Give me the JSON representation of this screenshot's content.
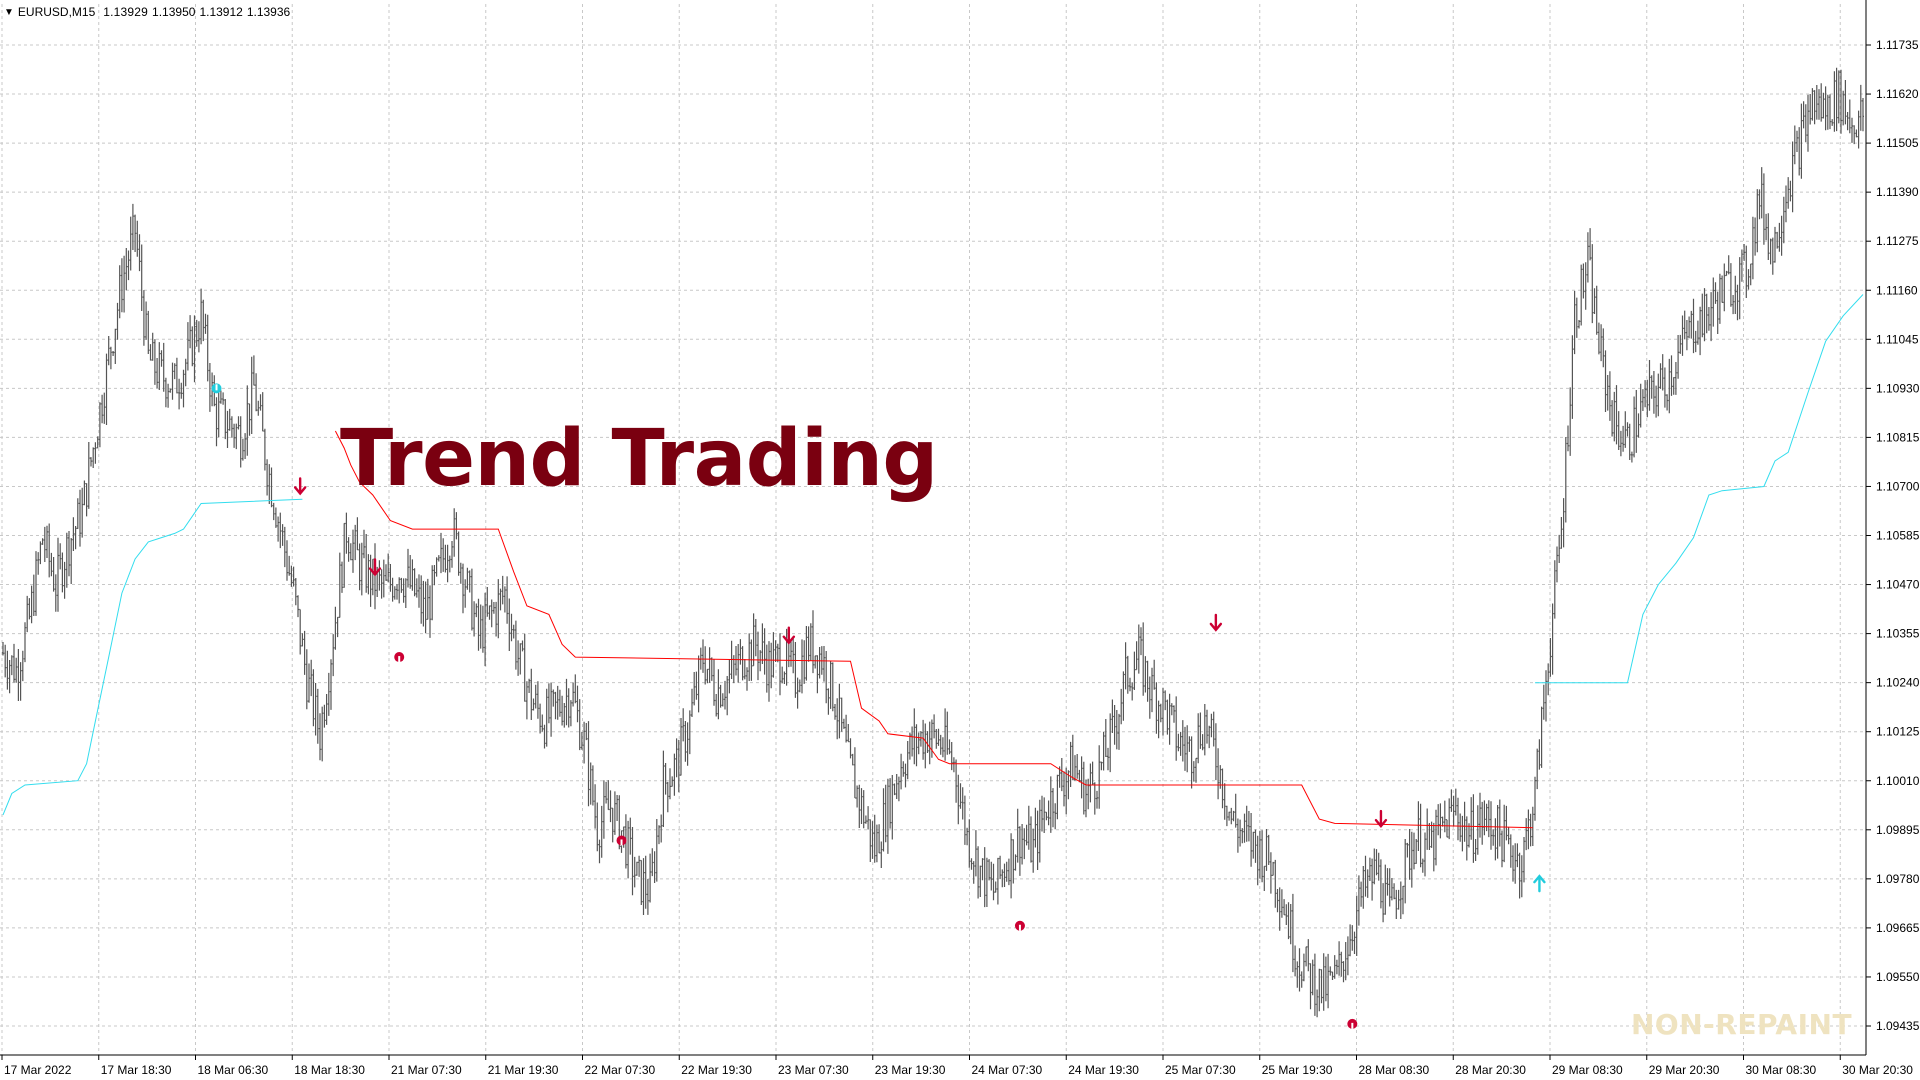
{
  "header": {
    "symbol": "EURUSD,M15",
    "open": "1.13929",
    "high": "1.13950",
    "low": "1.13912",
    "close": "1.13936"
  },
  "overlay_title": "Trend Trading",
  "watermark": "NON-REPAINT",
  "colors": {
    "price_bars": "#555555",
    "down_line": "#ff0000",
    "up_line": "#33ddee",
    "sell_arrow": "#cc0033",
    "buy_arrow": "#22ccdd",
    "grid": "#c8c8c8",
    "title": "#7a0010"
  },
  "chart_data": {
    "type": "line",
    "y_ticks": [
      "1.11735",
      "1.11620",
      "1.11505",
      "1.11390",
      "1.11275",
      "1.11160",
      "1.11045",
      "1.10930",
      "1.10815",
      "1.10700",
      "1.10585",
      "1.10470",
      "1.10355",
      "1.10240",
      "1.10125",
      "1.10010",
      "1.09895",
      "1.09780",
      "1.09665",
      "1.09550",
      "1.09435"
    ],
    "x_ticks": [
      "17 Mar 2022",
      "17 Mar 18:30",
      "18 Mar 06:30",
      "18 Mar 18:30",
      "21 Mar 07:30",
      "21 Mar 19:30",
      "22 Mar 07:30",
      "22 Mar 19:30",
      "23 Mar 07:30",
      "23 Mar 19:30",
      "24 Mar 07:30",
      "24 Mar 19:30",
      "25 Mar 07:30",
      "25 Mar 19:30",
      "28 Mar 08:30",
      "28 Mar 20:30",
      "29 Mar 08:30",
      "29 Mar 20:30",
      "30 Mar 08:30",
      "30 Mar 20:30"
    ],
    "ylim": [
      1.09435,
      1.11735
    ],
    "price_path": [
      {
        "i": 0,
        "v": 1.1031
      },
      {
        "i": 6,
        "v": 1.1027
      },
      {
        "i": 12,
        "v": 1.1039
      },
      {
        "i": 18,
        "v": 1.1058
      },
      {
        "i": 24,
        "v": 1.1047
      },
      {
        "i": 30,
        "v": 1.1057
      },
      {
        "i": 36,
        "v": 1.1064
      },
      {
        "i": 42,
        "v": 1.1082
      },
      {
        "i": 48,
        "v": 1.11
      },
      {
        "i": 54,
        "v": 1.1118
      },
      {
        "i": 60,
        "v": 1.113
      },
      {
        "i": 66,
        "v": 1.11
      },
      {
        "i": 72,
        "v": 1.1096
      },
      {
        "i": 78,
        "v": 1.1094
      },
      {
        "i": 84,
        "v": 1.11
      },
      {
        "i": 90,
        "v": 1.111
      },
      {
        "i": 96,
        "v": 1.1088
      },
      {
        "i": 102,
        "v": 1.1085
      },
      {
        "i": 108,
        "v": 1.1082
      },
      {
        "i": 114,
        "v": 1.1093
      },
      {
        "i": 120,
        "v": 1.1075
      },
      {
        "i": 126,
        "v": 1.106
      },
      {
        "i": 132,
        "v": 1.1045
      },
      {
        "i": 138,
        "v": 1.1025
      },
      {
        "i": 144,
        "v": 1.1012
      },
      {
        "i": 150,
        "v": 1.1035
      },
      {
        "i": 156,
        "v": 1.106
      },
      {
        "i": 162,
        "v": 1.1052
      },
      {
        "i": 168,
        "v": 1.1048
      },
      {
        "i": 174,
        "v": 1.1046
      },
      {
        "i": 180,
        "v": 1.105
      },
      {
        "i": 186,
        "v": 1.1046
      },
      {
        "i": 192,
        "v": 1.104
      },
      {
        "i": 198,
        "v": 1.105
      },
      {
        "i": 204,
        "v": 1.106
      },
      {
        "i": 210,
        "v": 1.1048
      },
      {
        "i": 216,
        "v": 1.1035
      },
      {
        "i": 222,
        "v": 1.104
      },
      {
        "i": 228,
        "v": 1.1045
      },
      {
        "i": 234,
        "v": 1.103
      },
      {
        "i": 240,
        "v": 1.102
      },
      {
        "i": 246,
        "v": 1.1015
      },
      {
        "i": 252,
        "v": 1.1018
      },
      {
        "i": 258,
        "v": 1.1022
      },
      {
        "i": 264,
        "v": 1.101
      },
      {
        "i": 270,
        "v": 1.099
      },
      {
        "i": 276,
        "v": 1.0995
      },
      {
        "i": 282,
        "v": 1.0988
      },
      {
        "i": 288,
        "v": 1.0978
      },
      {
        "i": 294,
        "v": 1.0975
      },
      {
        "i": 300,
        "v": 1.1
      },
      {
        "i": 306,
        "v": 1.1005
      },
      {
        "i": 312,
        "v": 1.1015
      },
      {
        "i": 318,
        "v": 1.103
      },
      {
        "i": 324,
        "v": 1.1022
      },
      {
        "i": 330,
        "v": 1.1025
      },
      {
        "i": 336,
        "v": 1.103
      },
      {
        "i": 342,
        "v": 1.1033
      },
      {
        "i": 348,
        "v": 1.1028
      },
      {
        "i": 354,
        "v": 1.103
      },
      {
        "i": 360,
        "v": 1.1025
      },
      {
        "i": 366,
        "v": 1.1033
      },
      {
        "i": 372,
        "v": 1.103
      },
      {
        "i": 378,
        "v": 1.102
      },
      {
        "i": 384,
        "v": 1.1005
      },
      {
        "i": 390,
        "v": 1.0995
      },
      {
        "i": 396,
        "v": 1.0985
      },
      {
        "i": 402,
        "v": 1.0995
      },
      {
        "i": 408,
        "v": 1.1005
      },
      {
        "i": 414,
        "v": 1.101
      },
      {
        "i": 420,
        "v": 1.1012
      },
      {
        "i": 426,
        "v": 1.101
      },
      {
        "i": 432,
        "v": 1.1005
      },
      {
        "i": 438,
        "v": 1.0988
      },
      {
        "i": 444,
        "v": 1.098
      },
      {
        "i": 450,
        "v": 1.0975
      },
      {
        "i": 456,
        "v": 1.0982
      },
      {
        "i": 462,
        "v": 1.0988
      },
      {
        "i": 468,
        "v": 1.0985
      },
      {
        "i": 474,
        "v": 1.0995
      },
      {
        "i": 480,
        "v": 1.1
      },
      {
        "i": 486,
        "v": 1.1005
      },
      {
        "i": 492,
        "v": 1.0998
      },
      {
        "i": 498,
        "v": 1.1003
      },
      {
        "i": 504,
        "v": 1.1012
      },
      {
        "i": 510,
        "v": 1.1025
      },
      {
        "i": 516,
        "v": 1.103
      },
      {
        "i": 522,
        "v": 1.1022
      },
      {
        "i": 528,
        "v": 1.1018
      },
      {
        "i": 534,
        "v": 1.101
      },
      {
        "i": 540,
        "v": 1.1008
      },
      {
        "i": 546,
        "v": 1.1015
      },
      {
        "i": 552,
        "v": 1.1005
      },
      {
        "i": 558,
        "v": 1.0992
      },
      {
        "i": 564,
        "v": 1.0988
      },
      {
        "i": 570,
        "v": 1.0985
      },
      {
        "i": 576,
        "v": 1.0982
      },
      {
        "i": 582,
        "v": 1.0972
      },
      {
        "i": 588,
        "v": 1.096
      },
      {
        "i": 594,
        "v": 1.0955
      },
      {
        "i": 600,
        "v": 1.0952
      },
      {
        "i": 606,
        "v": 1.0955
      },
      {
        "i": 612,
        "v": 1.0965
      },
      {
        "i": 618,
        "v": 1.0975
      },
      {
        "i": 624,
        "v": 1.098
      },
      {
        "i": 630,
        "v": 1.097
      },
      {
        "i": 636,
        "v": 1.098
      },
      {
        "i": 642,
        "v": 1.0988
      },
      {
        "i": 648,
        "v": 1.0985
      },
      {
        "i": 654,
        "v": 1.099
      },
      {
        "i": 660,
        "v": 1.0994
      },
      {
        "i": 666,
        "v": 1.0988
      },
      {
        "i": 672,
        "v": 1.0992
      },
      {
        "i": 678,
        "v": 1.099
      },
      {
        "i": 684,
        "v": 1.0985
      },
      {
        "i": 690,
        "v": 1.0982
      },
      {
        "i": 696,
        "v": 1.0998
      },
      {
        "i": 702,
        "v": 1.103
      },
      {
        "i": 708,
        "v": 1.106
      },
      {
        "i": 714,
        "v": 1.111
      },
      {
        "i": 720,
        "v": 1.1122
      },
      {
        "i": 726,
        "v": 1.11
      },
      {
        "i": 732,
        "v": 1.1085
      },
      {
        "i": 738,
        "v": 1.108
      },
      {
        "i": 744,
        "v": 1.1088
      },
      {
        "i": 750,
        "v": 1.1092
      },
      {
        "i": 756,
        "v": 1.1095
      },
      {
        "i": 762,
        "v": 1.1102
      },
      {
        "i": 768,
        "v": 1.1108
      },
      {
        "i": 774,
        "v": 1.111
      },
      {
        "i": 780,
        "v": 1.1115
      },
      {
        "i": 786,
        "v": 1.1118
      },
      {
        "i": 792,
        "v": 1.112
      },
      {
        "i": 798,
        "v": 1.1138
      },
      {
        "i": 804,
        "v": 1.1125
      },
      {
        "i": 810,
        "v": 1.114
      },
      {
        "i": 816,
        "v": 1.115
      },
      {
        "i": 822,
        "v": 1.116
      },
      {
        "i": 828,
        "v": 1.1158
      },
      {
        "i": 834,
        "v": 1.1162
      },
      {
        "i": 840,
        "v": 1.1155
      },
      {
        "i": 845,
        "v": 1.1157
      }
    ],
    "red_stop_line": [
      {
        "i": 151,
        "v": 1.1083
      },
      {
        "i": 155,
        "v": 1.1079
      },
      {
        "i": 158,
        "v": 1.1075
      },
      {
        "i": 162,
        "v": 1.1071
      },
      {
        "i": 168,
        "v": 1.1068
      },
      {
        "i": 172,
        "v": 1.1065
      },
      {
        "i": 176,
        "v": 1.1062
      },
      {
        "i": 186,
        "v": 1.106
      },
      {
        "i": 225,
        "v": 1.106
      },
      {
        "i": 232,
        "v": 1.105
      },
      {
        "i": 238,
        "v": 1.1042
      },
      {
        "i": 248,
        "v": 1.104
      },
      {
        "i": 254,
        "v": 1.1033
      },
      {
        "i": 260,
        "v": 1.103
      },
      {
        "i": 385,
        "v": 1.1029
      },
      {
        "i": 390,
        "v": 1.1018
      },
      {
        "i": 398,
        "v": 1.1015
      },
      {
        "i": 402,
        "v": 1.1012
      },
      {
        "i": 418,
        "v": 1.1011
      },
      {
        "i": 425,
        "v": 1.1006
      },
      {
        "i": 430,
        "v": 1.1005
      },
      {
        "i": 476,
        "v": 1.1005
      },
      {
        "i": 485,
        "v": 1.1002
      },
      {
        "i": 492,
        "v": 1.1
      },
      {
        "i": 590,
        "v": 1.1
      },
      {
        "i": 598,
        "v": 1.0992
      },
      {
        "i": 605,
        "v": 1.0991
      },
      {
        "i": 695,
        "v": 1.099
      }
    ],
    "cyan_stop_line": [
      {
        "i": 0,
        "v": 1.0993
      },
      {
        "i": 4,
        "v": 1.0998
      },
      {
        "i": 10,
        "v": 1.1
      },
      {
        "i": 34,
        "v": 1.1001
      },
      {
        "i": 38,
        "v": 1.1005
      },
      {
        "i": 42,
        "v": 1.1015
      },
      {
        "i": 48,
        "v": 1.103
      },
      {
        "i": 54,
        "v": 1.1045
      },
      {
        "i": 60,
        "v": 1.1053
      },
      {
        "i": 66,
        "v": 1.1057
      },
      {
        "i": 72,
        "v": 1.1058
      },
      {
        "i": 78,
        "v": 1.1059
      },
      {
        "i": 82,
        "v": 1.106
      },
      {
        "i": 86,
        "v": 1.1063
      },
      {
        "i": 90,
        "v": 1.1066
      },
      {
        "i": 136,
        "v": 1.1067
      },
      {
        "i": 696,
        "v": 1.1024
      },
      {
        "i": 738,
        "v": 1.1024
      },
      {
        "i": 745,
        "v": 1.104
      },
      {
        "i": 752,
        "v": 1.1047
      },
      {
        "i": 760,
        "v": 1.1052
      },
      {
        "i": 768,
        "v": 1.1058
      },
      {
        "i": 775,
        "v": 1.1068
      },
      {
        "i": 781,
        "v": 1.1069
      },
      {
        "i": 800,
        "v": 1.107
      },
      {
        "i": 805,
        "v": 1.1076
      },
      {
        "i": 811,
        "v": 1.1078
      },
      {
        "i": 820,
        "v": 1.1092
      },
      {
        "i": 828,
        "v": 1.1104
      },
      {
        "i": 836,
        "v": 1.111
      },
      {
        "i": 845,
        "v": 1.1115
      }
    ],
    "signals": [
      {
        "kind": "buy-dot",
        "i": 97,
        "v": 1.1093
      },
      {
        "kind": "sell-arrow",
        "i": 135,
        "v": 1.107
      },
      {
        "kind": "sell-arrow",
        "i": 169,
        "v": 1.1051
      },
      {
        "kind": "sell-dot",
        "i": 180,
        "v": 1.103
      },
      {
        "kind": "sell-dot",
        "i": 281,
        "v": 1.0987
      },
      {
        "kind": "sell-arrow",
        "i": 357,
        "v": 1.1035
      },
      {
        "kind": "sell-dot",
        "i": 462,
        "v": 1.0967
      },
      {
        "kind": "sell-arrow",
        "i": 551,
        "v": 1.1038
      },
      {
        "kind": "sell-dot",
        "i": 613,
        "v": 1.0944
      },
      {
        "kind": "sell-arrow",
        "i": 626,
        "v": 1.0992
      },
      {
        "kind": "buy-arrow",
        "i": 698,
        "v": 1.0977
      }
    ]
  }
}
